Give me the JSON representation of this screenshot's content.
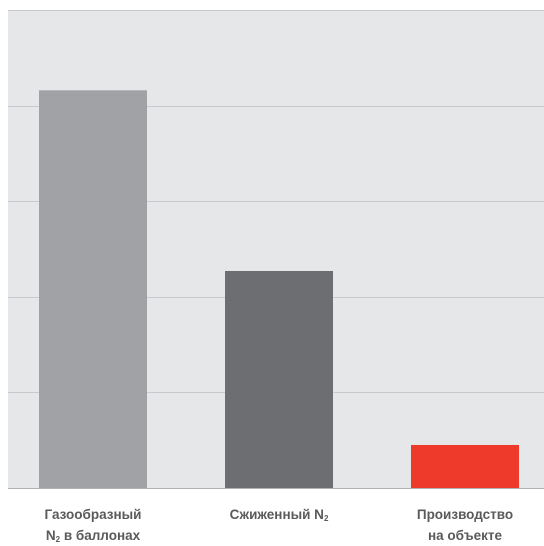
{
  "colors": {
    "plot_background": "#e6e7e9",
    "grid": "#c8c9cc",
    "axis": "#b0b1b4",
    "label_text": "#5a5a5a"
  },
  "chart_data": {
    "type": "bar",
    "title": "",
    "xlabel": "",
    "ylabel": "",
    "grid": true,
    "ylim": [
      0,
      5
    ],
    "gridlines": [
      1,
      2,
      3,
      4,
      5
    ],
    "categories": [
      {
        "lines": [
          [
            {
              "t": "Газообразный"
            }
          ],
          [
            {
              "t": "N"
            },
            {
              "sub": "2"
            },
            {
              "t": " в баллонах"
            }
          ]
        ]
      },
      {
        "lines": [
          [
            {
              "t": "Сжиженный N"
            },
            {
              "sub": "2"
            }
          ]
        ]
      },
      {
        "lines": [
          [
            {
              "t": "Производство"
            }
          ],
          [
            {
              "t": "на объекте"
            }
          ]
        ]
      }
    ],
    "values": [
      4.16,
      2.27,
      0.45
    ],
    "colors": [
      "#a1a2a5",
      "#6d6e71",
      "#ee3a2b"
    ]
  }
}
